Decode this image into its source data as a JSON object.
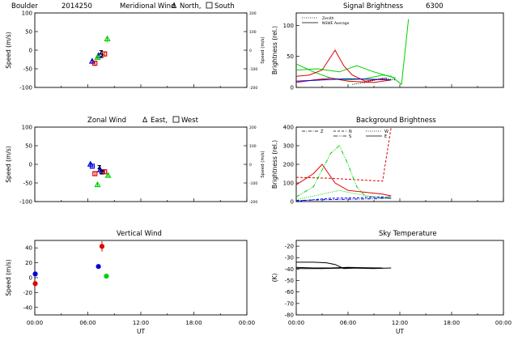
{
  "figure": {
    "station": "Boulder",
    "date_code": "2014250",
    "x_axis_label": "UT",
    "x_ticks": [
      "00:00",
      "06:00",
      "12:00",
      "18:00",
      "00:00"
    ]
  },
  "panels": {
    "meridional": {
      "title": "Meridional Wind",
      "legend_north": "North,",
      "legend_south": "South",
      "ylabel": "Speed (m/s)",
      "ylabel_right": "Speed (m/s)",
      "yticks": [
        "100",
        "50",
        "0",
        "-50",
        "-100"
      ],
      "yticks_right": [
        "200",
        "100",
        "0",
        "-100",
        "-200"
      ]
    },
    "zonal": {
      "title": "Zonal Wind",
      "legend_east": "East,",
      "legend_west": "West",
      "ylabel": "Speed (m/s)",
      "ylabel_right": "Speed (m/s)",
      "yticks": [
        "100",
        "50",
        "0",
        "-50",
        "-100"
      ],
      "yticks_right": [
        "200",
        "100",
        "0",
        "-100",
        "-200"
      ]
    },
    "vertical": {
      "title": "Vertical Wind",
      "ylabel": "Speed (m/s)",
      "yticks": [
        "40",
        "20",
        "0",
        "-20",
        "-40"
      ]
    },
    "signal": {
      "title": "Signal Brightness",
      "wavelength": "6300",
      "ylabel": "Brightness (rel.)",
      "yticks": [
        "100",
        "50",
        "0"
      ],
      "legend": [
        "Zenith",
        "NSWE Average"
      ]
    },
    "background": {
      "title": "Background Brightness",
      "ylabel": "Brightness (rel.)",
      "yticks": [
        "400",
        "300",
        "200",
        "100",
        "0"
      ],
      "legend": [
        "Z",
        "N",
        "S",
        "W",
        "E"
      ]
    },
    "sky": {
      "title": "Sky Temperature",
      "ylabel": "(K)",
      "yticks": [
        "-20",
        "-30",
        "-40",
        "-50",
        "-60",
        "-70",
        "-80"
      ]
    }
  },
  "colors": {
    "red": "#e00000",
    "green": "#00d000",
    "blue": "#0000e0",
    "black": "#000000"
  },
  "chart_data": [
    {
      "type": "scatter",
      "title": "Meridional Wind",
      "ylabel": "Speed (m/s)",
      "xlim": [
        0,
        24
      ],
      "ylim": [
        -100,
        100
      ],
      "series": [
        {
          "color": "blue",
          "marker": "triangle",
          "points": [
            [
              6.5,
              -30,
              8
            ],
            [
              7.2,
              -15,
              6
            ]
          ]
        },
        {
          "color": "red",
          "marker": "square",
          "points": [
            [
              6.8,
              -35,
              7
            ],
            [
              7.9,
              -10,
              7
            ]
          ]
        },
        {
          "color": "green",
          "marker": "triangle",
          "points": [
            [
              7.1,
              -20,
              6
            ],
            [
              8.2,
              30,
              8
            ]
          ]
        },
        {
          "color": "blue",
          "marker": "letter",
          "letter": "Z",
          "points": [
            [
              7.5,
              -5,
              5
            ]
          ]
        },
        {
          "color": "red",
          "marker": "letter",
          "letter": "Z",
          "points": [
            [
              7.6,
              -15,
              5
            ]
          ]
        }
      ]
    },
    {
      "type": "scatter",
      "title": "Zonal Wind",
      "ylabel": "Speed (m/s)",
      "xlim": [
        0,
        24
      ],
      "ylim": [
        -100,
        100
      ],
      "series": [
        {
          "color": "blue",
          "marker": "triangle",
          "points": [
            [
              6.3,
              0,
              8
            ],
            [
              7.4,
              -15,
              6
            ]
          ]
        },
        {
          "color": "blue",
          "marker": "square",
          "points": [
            [
              6.5,
              -5,
              6
            ],
            [
              7.6,
              -20,
              6
            ]
          ]
        },
        {
          "color": "red",
          "marker": "square",
          "points": [
            [
              6.8,
              -25,
              5
            ],
            [
              7.9,
              -20,
              6
            ]
          ]
        },
        {
          "color": "green",
          "marker": "triangle",
          "points": [
            [
              7.1,
              -55,
              5
            ],
            [
              8.3,
              -30,
              5
            ]
          ]
        },
        {
          "color": "blue",
          "marker": "letter",
          "letter": "Z",
          "points": [
            [
              7.3,
              -8,
              5
            ]
          ]
        },
        {
          "color": "red",
          "marker": "letter",
          "letter": "Z",
          "points": [
            [
              7.6,
              -22,
              5
            ]
          ]
        }
      ]
    },
    {
      "type": "scatter",
      "title": "Vertical Wind",
      "ylabel": "Speed (m/s)",
      "xlim": [
        0,
        24
      ],
      "ylim": [
        -50,
        50
      ],
      "series": [
        {
          "color": "red",
          "marker": "dot",
          "points": [
            [
              0.05,
              -8,
              2
            ],
            [
              7.6,
              42,
              7
            ]
          ]
        },
        {
          "color": "blue",
          "marker": "dot",
          "points": [
            [
              0.05,
              5,
              2
            ],
            [
              7.2,
              15,
              3
            ]
          ]
        },
        {
          "color": "green",
          "marker": "dot",
          "points": [
            [
              8.1,
              2,
              1.5
            ]
          ]
        }
      ]
    },
    {
      "type": "line",
      "title": "Signal Brightness",
      "ylabel": "Brightness (rel.)",
      "xlim": [
        0,
        24
      ],
      "ylim": [
        0,
        120
      ],
      "legend": "top-left",
      "series": [
        {
          "name": "NSWE Average",
          "color": "green",
          "points": [
            [
              0,
              38
            ],
            [
              2.0,
              25
            ],
            [
              4.0,
              15
            ],
            [
              6.0,
              12
            ],
            [
              8.0,
              14
            ],
            [
              10.0,
              20
            ],
            [
              11.0,
              18
            ],
            [
              12.2,
              5
            ],
            [
              13.0,
              110
            ]
          ]
        },
        {
          "name": "NSWE Average",
          "color": "green",
          "points": [
            [
              0,
              28
            ],
            [
              2.5,
              30
            ],
            [
              5.0,
              25
            ],
            [
              7.0,
              35
            ],
            [
              9.0,
              25
            ],
            [
              11.5,
              15
            ]
          ]
        },
        {
          "name": "NSWE Average",
          "color": "red",
          "points": [
            [
              0,
              18
            ],
            [
              1.5,
              20
            ],
            [
              3.0,
              28
            ],
            [
              4.5,
              60
            ],
            [
              5.5,
              35
            ],
            [
              6.5,
              20
            ],
            [
              8.0,
              10
            ],
            [
              10.5,
              15
            ]
          ]
        },
        {
          "name": "NSWE Average",
          "color": "red",
          "points": [
            [
              0,
              8
            ],
            [
              2.0,
              12
            ],
            [
              4.0,
              15
            ],
            [
              6.0,
              10
            ],
            [
              9.0,
              8
            ],
            [
              11.0,
              12
            ]
          ]
        },
        {
          "name": "NSWE Average",
          "color": "blue",
          "points": [
            [
              0,
              10
            ],
            [
              3.0,
              12
            ],
            [
              6.0,
              14
            ],
            [
              9.0,
              13
            ],
            [
              11.0,
              12
            ]
          ]
        },
        {
          "name": "Zenith",
          "color": "black",
          "points": [
            [
              6.5,
              5
            ],
            [
              8.0,
              8
            ],
            [
              10.0,
              15
            ],
            [
              11.5,
              12
            ]
          ]
        }
      ]
    },
    {
      "type": "line",
      "title": "Background Brightness",
      "ylabel": "Brightness (rel.)",
      "xlim": [
        0,
        24
      ],
      "ylim": [
        0,
        400
      ],
      "legend": "top",
      "series": [
        {
          "name": "N",
          "color": "red",
          "points": [
            [
              0,
              130
            ],
            [
              2.0,
              128
            ],
            [
              4.0,
              125
            ],
            [
              6.0,
              120
            ],
            [
              8.0,
              115
            ],
            [
              10.0,
              110
            ],
            [
              11.0,
              400
            ]
          ]
        },
        {
          "name": "S",
          "color": "green",
          "points": [
            [
              0,
              25
            ],
            [
              2.0,
              80
            ],
            [
              4.0,
              260
            ],
            [
              5.0,
              300
            ],
            [
              6.0,
              200
            ],
            [
              7.0,
              80
            ],
            [
              8.0,
              30
            ],
            [
              10.0,
              20
            ],
            [
              11.0,
              30
            ]
          ]
        },
        {
          "name": "W",
          "color": "green",
          "points": [
            [
              0,
              10
            ],
            [
              3.0,
              40
            ],
            [
              5.0,
              60
            ],
            [
              7.0,
              40
            ],
            [
              9.0,
              25
            ],
            [
              11.0,
              15
            ]
          ]
        },
        {
          "name": "E",
          "color": "red",
          "points": [
            [
              0,
              90
            ],
            [
              2.0,
              150
            ],
            [
              3.0,
              200
            ],
            [
              4.5,
              100
            ],
            [
              6.0,
              60
            ],
            [
              8.0,
              50
            ],
            [
              10.0,
              40
            ],
            [
              11.0,
              30
            ]
          ]
        },
        {
          "name": "Z",
          "color": "blue",
          "points": [
            [
              0,
              5
            ],
            [
              3.0,
              10
            ],
            [
              6.0,
              12
            ],
            [
              9.0,
              15
            ],
            [
              11.0,
              20
            ]
          ]
        },
        {
          "name": "N",
          "color": "blue",
          "points": [
            [
              0,
              2
            ],
            [
              4.0,
              18
            ],
            [
              7.0,
              20
            ],
            [
              10.0,
              25
            ],
            [
              11.0,
              18
            ]
          ]
        }
      ]
    },
    {
      "type": "line",
      "title": "Sky Temperature",
      "ylabel": "(K)",
      "xlim": [
        0,
        24
      ],
      "ylim": [
        -80,
        -15
      ],
      "series": [
        {
          "color": "black",
          "points": [
            [
              0,
              -34
            ],
            [
              2.0,
              -34
            ],
            [
              3.5,
              -34.5
            ],
            [
              4.5,
              -36
            ],
            [
              5.5,
              -39.5
            ],
            [
              7.0,
              -39
            ],
            [
              9.0,
              -39
            ]
          ]
        },
        {
          "color": "black",
          "points": [
            [
              0,
              -38.5
            ],
            [
              2.0,
              -39
            ],
            [
              4.0,
              -39
            ],
            [
              6.0,
              -38.5
            ],
            [
              8.0,
              -38.8
            ],
            [
              10.0,
              -39
            ]
          ]
        },
        {
          "color": "black",
          "points": [
            [
              0,
              -39.5
            ],
            [
              3.0,
              -39.5
            ],
            [
              6.0,
              -39
            ],
            [
              9.0,
              -39.5
            ],
            [
              11.0,
              -39
            ]
          ]
        }
      ]
    }
  ]
}
